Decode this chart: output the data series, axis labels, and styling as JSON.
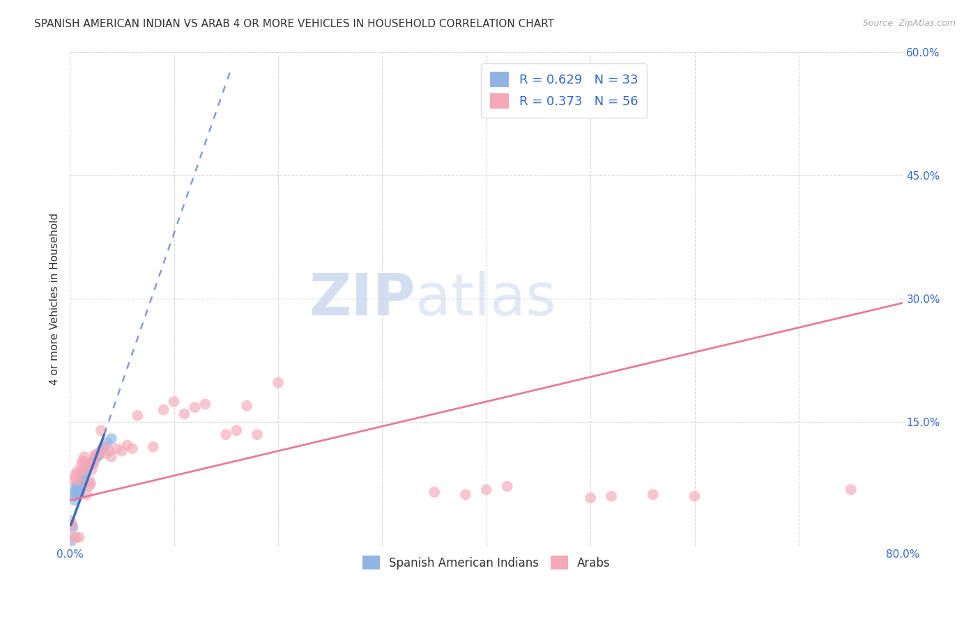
{
  "title": "SPANISH AMERICAN INDIAN VS ARAB 4 OR MORE VEHICLES IN HOUSEHOLD CORRELATION CHART",
  "source": "Source: ZipAtlas.com",
  "ylabel": "4 or more Vehicles in Household",
  "xlim": [
    0,
    0.8
  ],
  "ylim": [
    0,
    0.6
  ],
  "xticks": [
    0.0,
    0.1,
    0.2,
    0.3,
    0.4,
    0.5,
    0.6,
    0.7,
    0.8
  ],
  "xticklabels": [
    "0.0%",
    "",
    "",
    "",
    "",
    "",
    "",
    "",
    "80.0%"
  ],
  "yticks": [
    0.0,
    0.15,
    0.3,
    0.45,
    0.6
  ],
  "yticklabels": [
    "",
    "15.0%",
    "30.0%",
    "45.0%",
    "60.0%"
  ],
  "legend1_label": "R = 0.629   N = 33",
  "legend2_label": "R = 0.373   N = 56",
  "legend_label_blue": "Spanish American Indians",
  "legend_label_pink": "Arabs",
  "blue_color": "#92b4e3",
  "pink_color": "#f4a8b8",
  "trend_blue_color": "#3a6bbf",
  "trend_pink_color": "#e87a9a",
  "background_color": "#ffffff",
  "title_fontsize": 11,
  "blue_scatter_x": [
    0.001,
    0.002,
    0.003,
    0.004,
    0.005,
    0.005,
    0.006,
    0.006,
    0.007,
    0.007,
    0.008,
    0.008,
    0.009,
    0.01,
    0.01,
    0.011,
    0.012,
    0.013,
    0.014,
    0.015,
    0.016,
    0.017,
    0.018,
    0.019,
    0.02,
    0.022,
    0.024,
    0.026,
    0.028,
    0.03,
    0.033,
    0.036,
    0.04
  ],
  "blue_scatter_y": [
    0.005,
    0.025,
    0.022,
    0.06,
    0.055,
    0.065,
    0.068,
    0.072,
    0.065,
    0.075,
    0.068,
    0.074,
    0.062,
    0.066,
    0.076,
    0.08,
    0.082,
    0.088,
    0.09,
    0.093,
    0.095,
    0.095,
    0.098,
    0.098,
    0.1,
    0.1,
    0.105,
    0.108,
    0.11,
    0.115,
    0.12,
    0.125,
    0.13
  ],
  "pink_scatter_x": [
    0.001,
    0.002,
    0.003,
    0.004,
    0.005,
    0.006,
    0.007,
    0.008,
    0.009,
    0.01,
    0.011,
    0.012,
    0.013,
    0.014,
    0.015,
    0.016,
    0.017,
    0.018,
    0.019,
    0.02,
    0.021,
    0.022,
    0.023,
    0.024,
    0.025,
    0.027,
    0.03,
    0.032,
    0.035,
    0.038,
    0.04,
    0.045,
    0.05,
    0.055,
    0.06,
    0.065,
    0.08,
    0.09,
    0.1,
    0.11,
    0.12,
    0.13,
    0.15,
    0.16,
    0.17,
    0.18,
    0.2,
    0.35,
    0.38,
    0.4,
    0.42,
    0.5,
    0.52,
    0.56,
    0.6,
    0.75
  ],
  "pink_scatter_y": [
    0.03,
    0.025,
    0.08,
    0.01,
    0.085,
    0.01,
    0.09,
    0.08,
    0.01,
    0.09,
    0.098,
    0.103,
    0.092,
    0.108,
    0.102,
    0.062,
    0.098,
    0.072,
    0.078,
    0.075,
    0.092,
    0.102,
    0.1,
    0.11,
    0.11,
    0.112,
    0.14,
    0.12,
    0.112,
    0.115,
    0.108,
    0.118,
    0.115,
    0.122,
    0.118,
    0.158,
    0.12,
    0.165,
    0.175,
    0.16,
    0.168,
    0.172,
    0.135,
    0.14,
    0.17,
    0.135,
    0.198,
    0.065,
    0.062,
    0.068,
    0.072,
    0.058,
    0.06,
    0.062,
    0.06,
    0.068
  ],
  "pink_trend_x0": 0.0,
  "pink_trend_y0": 0.055,
  "pink_trend_x1": 0.8,
  "pink_trend_y1": 0.295,
  "blue_trend_solid_x0": 0.001,
  "blue_trend_solid_y0": 0.025,
  "blue_trend_solid_x1": 0.033,
  "blue_trend_solid_y1": 0.135,
  "blue_trend_dash_x0": 0.033,
  "blue_trend_dash_y0": 0.135,
  "blue_trend_dash_x1": 0.155,
  "blue_trend_dash_y1": 0.58
}
